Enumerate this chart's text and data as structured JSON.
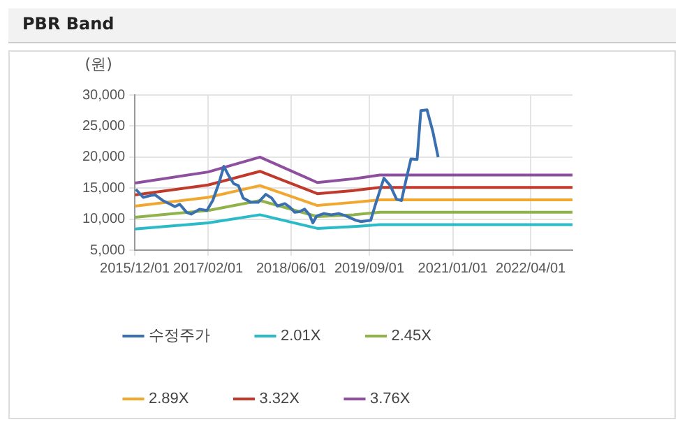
{
  "chart_data": {
    "type": "line",
    "title": "PBR Band",
    "ylabel": "(원)",
    "xlim": [
      "2015-12-01",
      "2022-12-01"
    ],
    "xticks": [
      {
        "value": "2015-12-01",
        "label": "2015/12/01"
      },
      {
        "value": "2017-02-01",
        "label": "2017/02/01"
      },
      {
        "value": "2018-06-01",
        "label": "2018/06/01"
      },
      {
        "value": "2019-09-01",
        "label": "2019/09/01"
      },
      {
        "value": "2021-01-01",
        "label": "2021/01/01"
      },
      {
        "value": "2022-04-01",
        "label": "2022/04/01"
      }
    ],
    "ylim": [
      5000,
      30000
    ],
    "yticks": [
      {
        "value": 5000,
        "label": "5,000"
      },
      {
        "value": 10000,
        "label": "10,000"
      },
      {
        "value": 15000,
        "label": "15,000"
      },
      {
        "value": 20000,
        "label": "20,000"
      },
      {
        "value": 25000,
        "label": "25,000"
      },
      {
        "value": 30000,
        "label": "30,000"
      }
    ],
    "grid": true,
    "legend": "bottom",
    "marker": "none",
    "line_style": "solid",
    "series": [
      {
        "name": "수정주가",
        "color": "#3a6fb0",
        "x": [
          "2015-12-07",
          "2016-01-19",
          "2016-03-01",
          "2016-03-28",
          "2016-05-12",
          "2016-06-25",
          "2016-07-22",
          "2016-08-19",
          "2016-09-28",
          "2016-10-25",
          "2016-12-13",
          "2017-01-25",
          "2017-02-28",
          "2017-04-04",
          "2017-05-04",
          "2017-06-01",
          "2017-07-01",
          "2017-07-28",
          "2017-08-25",
          "2017-10-10",
          "2017-11-21",
          "2018-01-04",
          "2018-02-07",
          "2018-03-13",
          "2018-04-25",
          "2018-05-25",
          "2018-06-22",
          "2018-07-19",
          "2018-08-19",
          "2018-09-16",
          "2018-10-06",
          "2018-10-28",
          "2018-12-10",
          "2019-01-22",
          "2019-03-06",
          "2019-04-19",
          "2019-06-15",
          "2019-07-12",
          "2019-09-09",
          "2019-10-07",
          "2019-11-25",
          "2020-01-01",
          "2020-02-07",
          "2020-03-07",
          "2020-04-04",
          "2020-05-01",
          "2020-06-06",
          "2020-06-28",
          "2020-08-03",
          "2020-09-06",
          "2020-10-07"
        ],
        "values": [
          14800,
          13500,
          13800,
          13900,
          13000,
          12400,
          12000,
          12400,
          11100,
          10800,
          11600,
          11400,
          13000,
          15700,
          18500,
          17000,
          15700,
          15400,
          13400,
          12700,
          12700,
          14000,
          13400,
          12100,
          12500,
          11900,
          11100,
          11200,
          11600,
          10700,
          9400,
          10500,
          10900,
          10700,
          10900,
          10500,
          9800,
          9600,
          9800,
          12400,
          16600,
          15400,
          13200,
          13000,
          16500,
          19700,
          19600,
          27500,
          27600,
          24100,
          20000
        ]
      },
      {
        "name": "2.01X",
        "color": "#2bbbc8",
        "x": [
          "2015-12-01",
          "2017-02-01",
          "2017-12-01",
          "2018-11-01",
          "2019-06-01",
          "2019-11-01",
          "2022-12-01"
        ],
        "values": [
          8400,
          9400,
          10700,
          8500,
          8800,
          9100,
          9100
        ]
      },
      {
        "name": "2.45X",
        "color": "#8fb34a",
        "x": [
          "2015-12-01",
          "2017-02-01",
          "2017-12-01",
          "2018-11-01",
          "2019-06-01",
          "2019-11-01",
          "2022-12-01"
        ],
        "values": [
          10300,
          11400,
          13000,
          10400,
          10700,
          11100,
          11100
        ]
      },
      {
        "name": "2.89X",
        "color": "#f0a830",
        "x": [
          "2015-12-01",
          "2017-02-01",
          "2017-12-01",
          "2018-11-01",
          "2019-06-01",
          "2019-11-01",
          "2022-12-01"
        ],
        "values": [
          12100,
          13500,
          15400,
          12200,
          12700,
          13100,
          13100
        ]
      },
      {
        "name": "3.32X",
        "color": "#c0392b",
        "x": [
          "2015-12-01",
          "2017-02-01",
          "2017-12-01",
          "2018-11-01",
          "2019-06-01",
          "2019-11-01",
          "2022-12-01"
        ],
        "values": [
          13900,
          15500,
          17700,
          14100,
          14600,
          15100,
          15100
        ]
      },
      {
        "name": "3.76X",
        "color": "#8e4f9e",
        "x": [
          "2015-12-01",
          "2017-02-01",
          "2017-12-01",
          "2018-11-01",
          "2019-06-01",
          "2019-11-01",
          "2022-12-01"
        ],
        "values": [
          15800,
          17600,
          20000,
          15900,
          16500,
          17100,
          17100
        ]
      }
    ]
  }
}
